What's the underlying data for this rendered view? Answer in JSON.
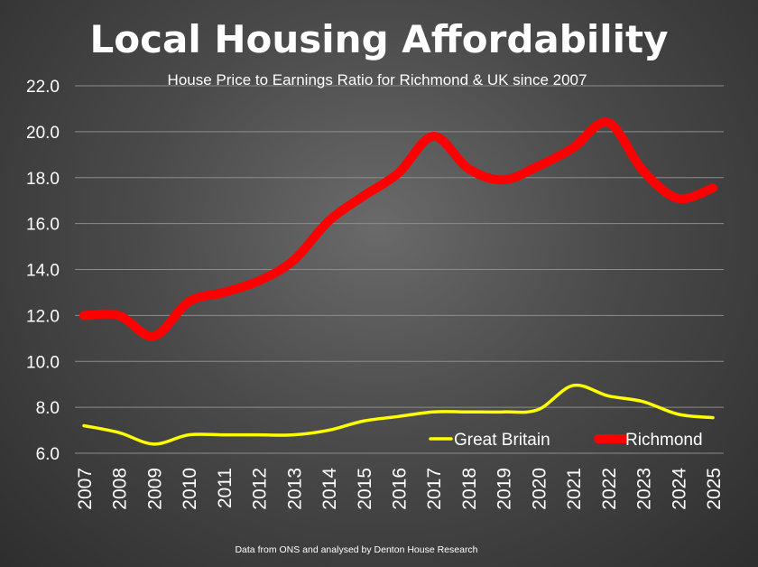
{
  "chart_data": {
    "type": "line",
    "title": "Local Housing Affordability",
    "subtitle": "House Price to Earnings Ratio for Richmond & UK since 2007",
    "source_note": "Data from ONS and analysed by Denton House Research",
    "categories": [
      "2007",
      "2008",
      "2009",
      "2010",
      "2011",
      "2012",
      "2013",
      "2014",
      "2015",
      "2016",
      "2017",
      "2018",
      "2019",
      "2020",
      "2021",
      "2022",
      "2023",
      "2024",
      "2025"
    ],
    "series": [
      {
        "name": "Great Britain",
        "color": "#ffff00",
        "values": [
          7.2,
          6.9,
          6.4,
          6.8,
          6.8,
          6.8,
          6.8,
          7.0,
          7.4,
          7.6,
          7.8,
          7.8,
          7.8,
          7.9,
          8.95,
          8.5,
          8.25,
          7.7,
          7.55
        ]
      },
      {
        "name": "Richmond",
        "color": "#ff0000",
        "values": [
          12.0,
          12.0,
          11.1,
          12.6,
          13.0,
          13.5,
          14.4,
          16.1,
          17.2,
          18.2,
          19.8,
          18.4,
          17.9,
          18.5,
          19.3,
          20.4,
          18.3,
          17.1,
          17.55
        ]
      }
    ],
    "ylim": [
      6.0,
      22.0
    ],
    "yticks": [
      "6.0",
      "8.0",
      "10.0",
      "12.0",
      "14.0",
      "16.0",
      "18.0",
      "20.0",
      "22.0"
    ],
    "grid": true,
    "legend_position": "bottom-right"
  }
}
